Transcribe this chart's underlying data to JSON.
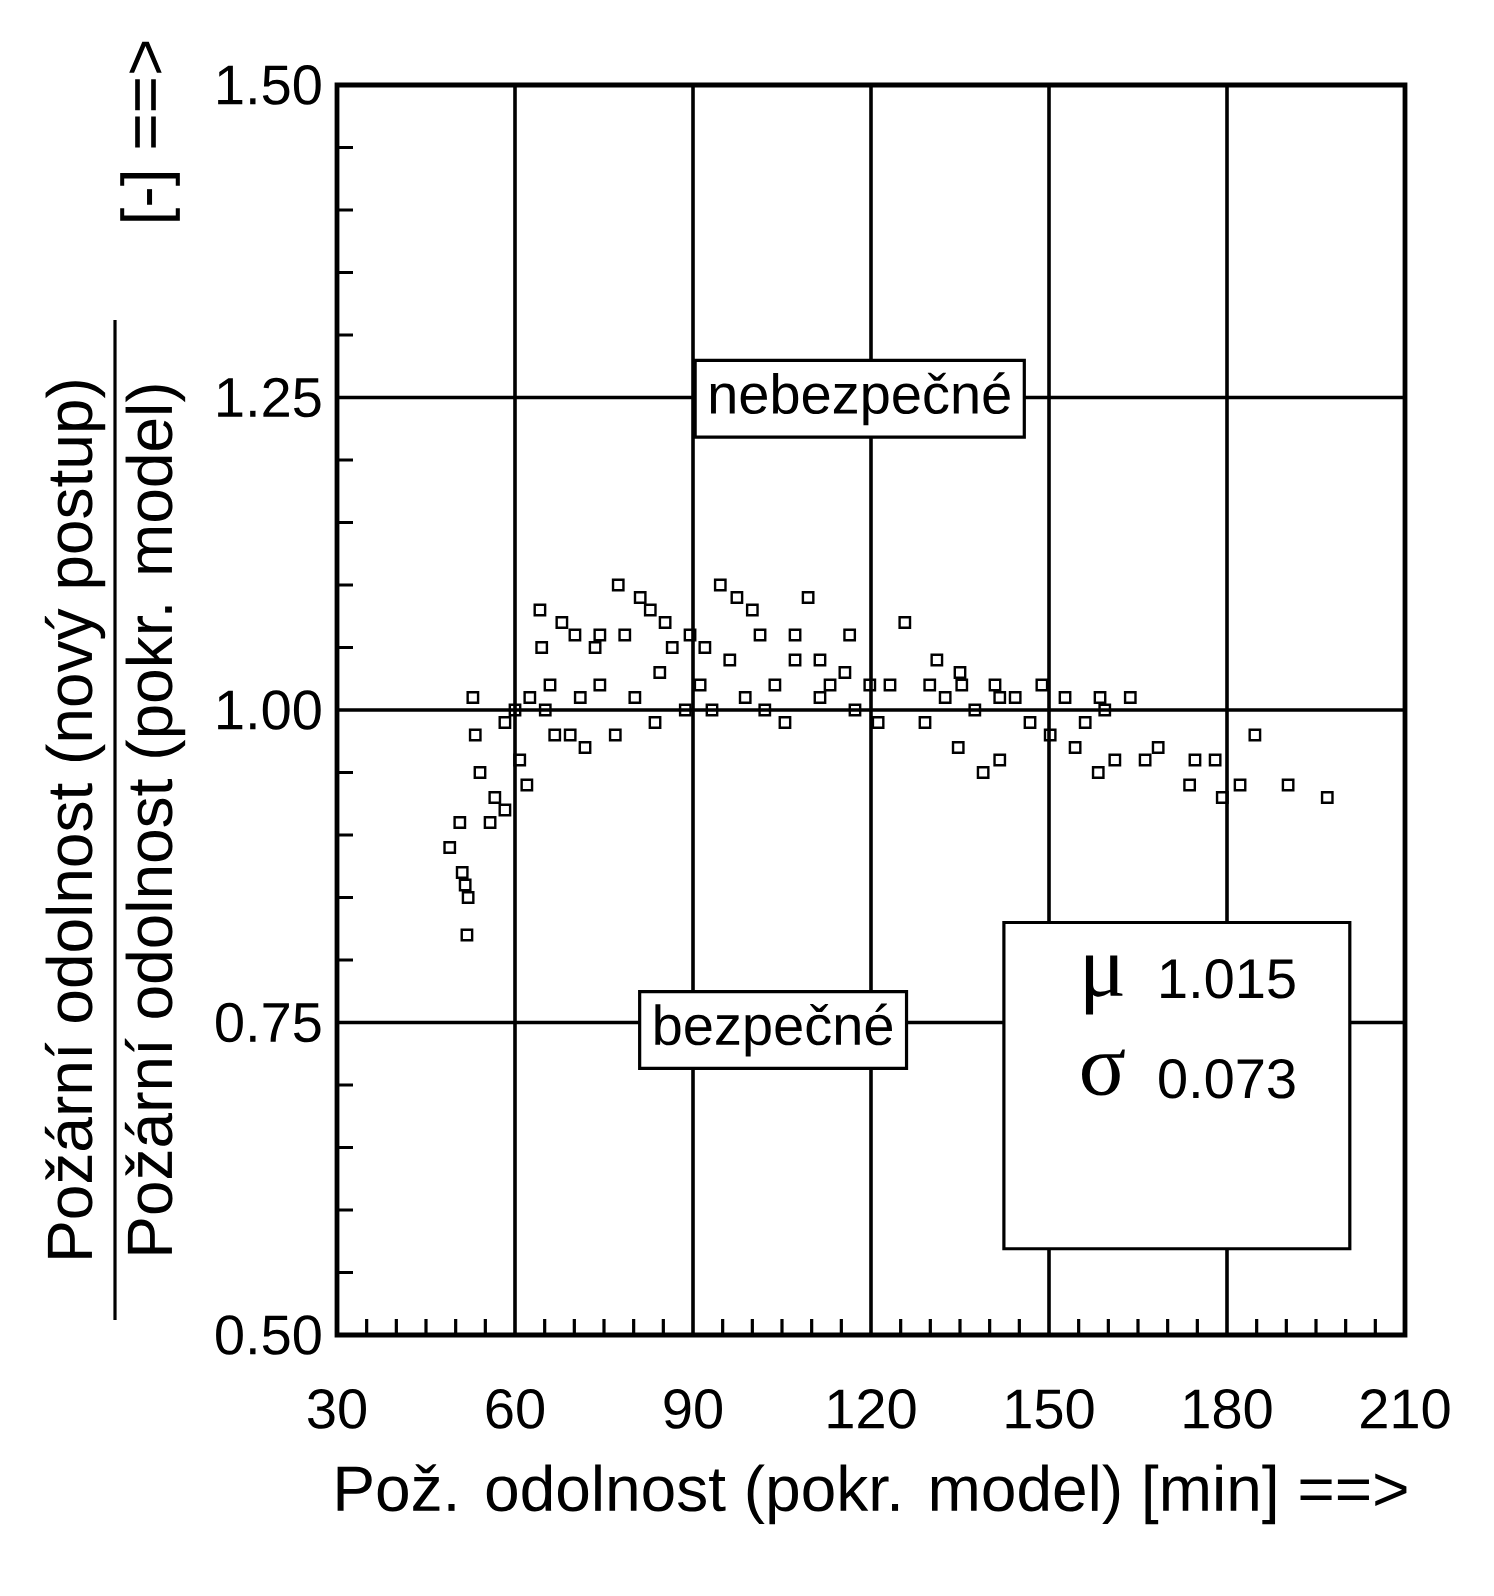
{
  "chart_data": {
    "type": "scatter",
    "xlabel": "Pož. odolnost (pokr. model) [min] ==>",
    "ylabel": "Požární odolnost (nový postup)",
    "annotations": [
      "nebezpečné",
      "bezpečné",
      "μ",
      "1.015",
      "σ",
      "0.073",
      "Požární odolnost (pokr. model)",
      "[-] ==>"
    ],
    "x": [
      49,
      50.7,
      51.1,
      51.6,
      51.9,
      52.1,
      52.9,
      53.3,
      54.1,
      55.8,
      56.6,
      58.3,
      58.3,
      60,
      60.8,
      62,
      62.5,
      64.2,
      64.5,
      65.1,
      65.9,
      66.7,
      67.9,
      69.3,
      70.1,
      71,
      71.8,
      73.5,
      74.3,
      74.3,
      76.9,
      77.4,
      78.5,
      80.2,
      81.1,
      82.8,
      83.6,
      84.4,
      85.3,
      86.5,
      88.7,
      89.5,
      91.2,
      92,
      93.2,
      94.6,
      96.2,
      97.4,
      98.8,
      100,
      101.3,
      102.1,
      103.8,
      105.5,
      107.2,
      107.2,
      109.4,
      111.4,
      111.4,
      113.1,
      115.6,
      116.4,
      117.3,
      119.8,
      121.2,
      123.2,
      125.7,
      129.1,
      129.9,
      131.1,
      132.5,
      134.7,
      135,
      135.3,
      137.5,
      138.9,
      140.9,
      141.7,
      141.7,
      144.3,
      146.8,
      148.8,
      150.2,
      152.7,
      154.4,
      156.1,
      158.3,
      158.6,
      159.4,
      161.1,
      163.7,
      166.2,
      168.4,
      173.7,
      174.6,
      178,
      179.2,
      182.2,
      184.7,
      190.3,
      196.9
    ],
    "values": [
      0.89,
      0.91,
      0.87,
      0.86,
      0.82,
      0.85,
      1.01,
      0.98,
      0.95,
      0.91,
      0.93,
      0.92,
      0.99,
      1.0,
      0.96,
      0.94,
      1.01,
      1.08,
      1.05,
      1.0,
      1.02,
      0.98,
      1.07,
      0.98,
      1.06,
      1.01,
      0.97,
      1.05,
      1.02,
      1.06,
      0.98,
      1.1,
      1.06,
      1.01,
      1.09,
      1.08,
      0.99,
      1.03,
      1.07,
      1.05,
      1.0,
      1.06,
      1.02,
      1.05,
      1.0,
      1.1,
      1.04,
      1.09,
      1.01,
      1.08,
      1.06,
      1.0,
      1.02,
      0.99,
      1.04,
      1.06,
      1.09,
      1.04,
      1.01,
      1.02,
      1.03,
      1.06,
      1.0,
      1.02,
      0.99,
      1.02,
      1.07,
      0.99,
      1.02,
      1.04,
      1.01,
      0.97,
      1.03,
      1.02,
      1.0,
      0.95,
      1.02,
      0.96,
      1.01,
      1.01,
      0.99,
      1.02,
      0.98,
      1.01,
      0.97,
      0.99,
      0.95,
      1.01,
      1.0,
      0.96,
      1.01,
      0.96,
      0.97,
      0.94,
      0.96,
      0.96,
      0.93,
      0.94,
      0.98,
      0.94,
      0.93
    ],
    "color": "#000000",
    "marker": "square",
    "grid": true,
    "xlim": [
      30,
      210
    ],
    "xticks": [
      30,
      60,
      90,
      120,
      150,
      180,
      210
    ],
    "ylim": [
      0.5,
      1.5
    ],
    "yticks": [
      {
        "value": 0.5,
        "label": "0.50"
      },
      0.75,
      {
        "value": 1,
        "label": "1.00"
      },
      1.25,
      {
        "value": 1.5,
        "label": "1.50"
      }
    ]
  }
}
